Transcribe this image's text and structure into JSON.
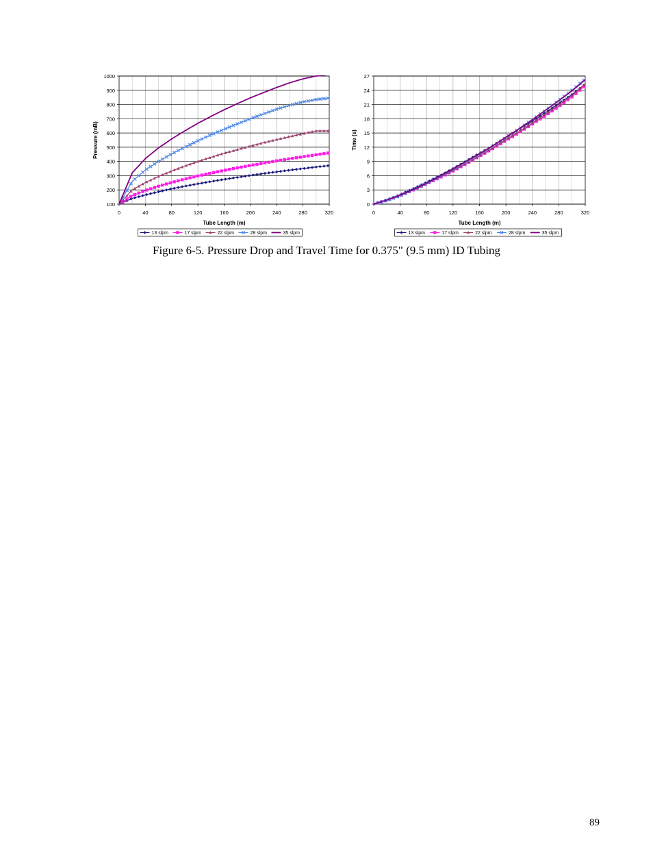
{
  "caption": "Figure 6-5. Pressure Drop and Travel Time for 0.375\" (9.5 mm) ID Tubing",
  "page_number": "89",
  "chart_data": [
    {
      "type": "line",
      "xlabel": "Tube Length (m)",
      "ylabel": "Pressure (mB)",
      "xlim": [
        0,
        320
      ],
      "ylim": [
        100,
        1000
      ],
      "x_ticks": [
        0,
        40,
        80,
        120,
        160,
        200,
        240,
        280,
        320
      ],
      "y_ticks": [
        100,
        200,
        300,
        400,
        500,
        600,
        700,
        800,
        900,
        1000
      ],
      "grid": "major horizontal, light vertical",
      "legend": "bottom",
      "x": [
        0,
        20,
        40,
        60,
        80,
        100,
        120,
        140,
        160,
        180,
        200,
        220,
        240,
        260,
        280,
        300,
        320
      ],
      "series": [
        {
          "name": "13 slpm",
          "color": "#1a1a7a",
          "marker": "diamond",
          "values": [
            100,
            140,
            165,
            187,
            208,
            226,
            243,
            259,
            274,
            288,
            302,
            315,
            327,
            339,
            350,
            361,
            371
          ]
        },
        {
          "name": "17 slpm",
          "color": "#ff1fe6",
          "marker": "square",
          "values": [
            100,
            160,
            196,
            226,
            252,
            276,
            298,
            318,
            337,
            355,
            372,
            388,
            404,
            419,
            433,
            447,
            460
          ]
        },
        {
          "name": "22 slpm",
          "color": "#9b3f6b",
          "marker": "triangle",
          "values": [
            100,
            200,
            252,
            295,
            333,
            368,
            400,
            430,
            458,
            484,
            508,
            532,
            554,
            575,
            595,
            615,
            615
          ]
        },
        {
          "name": "28 slpm",
          "color": "#4d86e6",
          "marker": "x",
          "values": [
            100,
            260,
            340,
            400,
            453,
            500,
            545,
            587,
            626,
            664,
            700,
            734,
            767,
            795,
            818,
            835,
            845
          ]
        },
        {
          "name": "35 slpm",
          "color": "#800080",
          "marker": "none",
          "values": [
            100,
            320,
            420,
            495,
            558,
            615,
            668,
            717,
            763,
            806,
            847,
            884,
            920,
            953,
            980,
            1000,
            1012
          ]
        }
      ]
    },
    {
      "type": "line",
      "xlabel": "Tube Length (m)",
      "ylabel": "Time (s)",
      "xlim": [
        0,
        320
      ],
      "ylim": [
        0,
        27
      ],
      "x_ticks": [
        0,
        40,
        80,
        120,
        160,
        200,
        240,
        280,
        320
      ],
      "y_ticks": [
        0,
        3,
        6,
        9,
        12,
        15,
        18,
        21,
        24,
        27
      ],
      "grid": "major horizontal, light vertical",
      "legend": "bottom",
      "x": [
        0,
        20,
        40,
        60,
        80,
        100,
        120,
        140,
        160,
        180,
        200,
        220,
        240,
        260,
        280,
        300,
        320
      ],
      "series": [
        {
          "name": "13 slpm",
          "color": "#1a1a7a",
          "marker": "diamond",
          "values": [
            0,
            0.9,
            2.0,
            3.3,
            4.6,
            6.0,
            7.5,
            9.1,
            10.7,
            12.3,
            14.0,
            15.8,
            17.5,
            19.3,
            21.2,
            23.1,
            25.3
          ]
        },
        {
          "name": "17 slpm",
          "color": "#ff1fe6",
          "marker": "square",
          "values": [
            0,
            0.8,
            1.8,
            3.0,
            4.3,
            5.6,
            7.0,
            8.5,
            10.1,
            11.7,
            13.4,
            15.1,
            16.9,
            18.7,
            20.6,
            22.6,
            25.0
          ]
        },
        {
          "name": "22 slpm",
          "color": "#9b3f6b",
          "marker": "triangle",
          "values": [
            0,
            0.8,
            1.8,
            3.0,
            4.3,
            5.7,
            7.1,
            8.6,
            10.2,
            11.9,
            13.6,
            15.3,
            17.1,
            19.0,
            20.9,
            22.9,
            25.3
          ]
        },
        {
          "name": "28 slpm",
          "color": "#4d86e6",
          "marker": "x",
          "values": [
            0,
            0.8,
            1.8,
            3.1,
            4.4,
            5.8,
            7.3,
            8.9,
            10.5,
            12.2,
            14.0,
            15.9,
            17.8,
            19.8,
            21.9,
            24.0,
            26.4
          ]
        },
        {
          "name": "35 slpm",
          "color": "#800080",
          "marker": "none",
          "values": [
            0,
            0.9,
            1.9,
            3.1,
            4.4,
            5.9,
            7.4,
            9.0,
            10.6,
            12.3,
            14.1,
            15.9,
            17.8,
            19.8,
            21.8,
            23.9,
            26.2
          ]
        }
      ]
    }
  ]
}
